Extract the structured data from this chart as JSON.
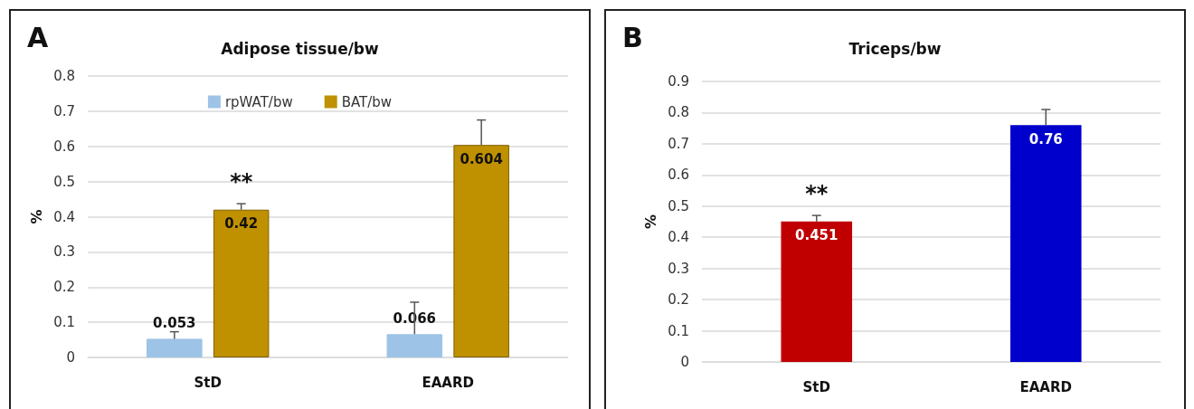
{
  "chart_data": [
    {
      "type": "bar",
      "title": "Adipose tissue/bw",
      "ylabel": "%",
      "categories": [
        "StD",
        "EAARD"
      ],
      "series": [
        {
          "name": "rpWAT/bw",
          "color": "#9dc3e6",
          "values": [
            0.053,
            0.066
          ],
          "errors": [
            [
              0.053,
              0.073
            ],
            [
              0.066,
              0.157
            ]
          ]
        },
        {
          "name": "BAT/bw",
          "color": "#bf9000",
          "values": [
            0.42,
            0.604
          ],
          "errors": [
            [
              0.42,
              0.437
            ],
            [
              0.604,
              0.675
            ]
          ]
        }
      ],
      "ylim": [
        0,
        0.8
      ],
      "yticks": [
        0,
        0.1,
        0.2,
        0.3,
        0.4,
        0.5,
        0.6,
        0.7,
        0.8
      ],
      "grid": "y",
      "legend": "top",
      "data_labels": true,
      "annotations": [
        "A",
        "**"
      ]
    },
    {
      "type": "bar",
      "title": "Triceps/bw",
      "ylabel": "%",
      "categories": [
        "StD",
        "EAARD"
      ],
      "values": [
        0.451,
        0.76
      ],
      "colors": [
        "#c00000",
        "#0000cc"
      ],
      "errors": [
        [
          0.451,
          0.47
        ],
        [
          0.76,
          0.81
        ]
      ],
      "ylim": [
        0,
        0.9
      ],
      "yticks": [
        0,
        0.1,
        0.2,
        0.3,
        0.4,
        0.5,
        0.6,
        0.7,
        0.8,
        0.9
      ],
      "grid": "y",
      "data_labels": true,
      "annotations": [
        "B",
        "**"
      ]
    }
  ]
}
